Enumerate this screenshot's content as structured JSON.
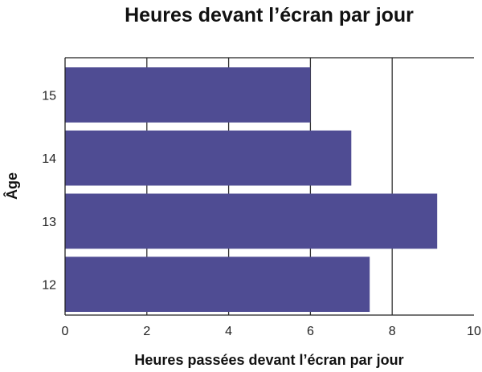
{
  "chart_data": {
    "type": "bar",
    "orientation": "horizontal",
    "title": "Heures devant l’écran par jour",
    "xlabel": "Heures passées devant l’écran par jour",
    "ylabel": "Âge",
    "categories": [
      "15",
      "14",
      "13",
      "12"
    ],
    "values": [
      6,
      7,
      9.1,
      7.45
    ],
    "xlim": [
      0,
      10
    ],
    "xticks": [
      "0",
      "2",
      "4",
      "6",
      "8",
      "10"
    ],
    "grid": true,
    "bar_color": "#4f4c93"
  }
}
